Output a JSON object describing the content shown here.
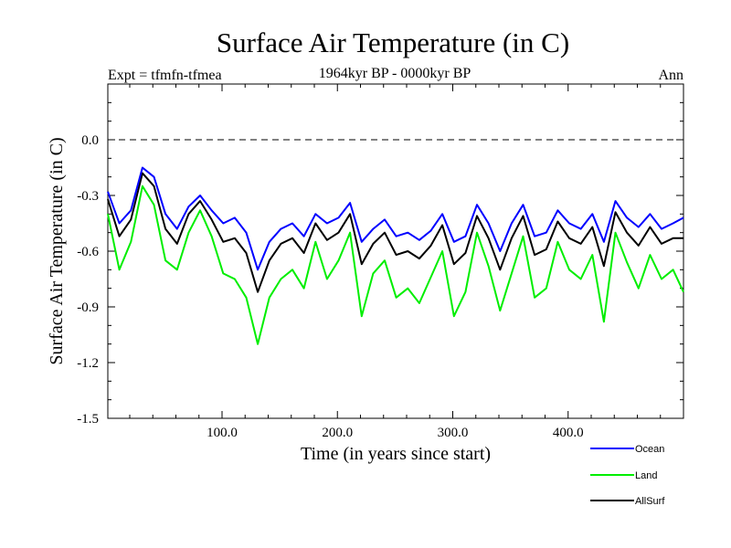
{
  "chart_data": {
    "type": "line",
    "title": "Surface Air Temperature (in C)",
    "subtitle": "1964kyr BP - 0000kyr BP",
    "left_label": "Expt = tfmfn-tfmea",
    "right_label": "Ann",
    "xlabel": "Time (in years since start)",
    "ylabel": "Surface Air Temperature (in C)",
    "xlim": [
      1,
      500
    ],
    "ylim": [
      -1.5,
      0.3
    ],
    "x_ticks": [
      100,
      200,
      300,
      400
    ],
    "x_tick_labels": [
      "100.0",
      "200.0",
      "300.0",
      "400.0"
    ],
    "y_ticks": [
      -1.5,
      -1.2,
      -0.9,
      -0.6,
      -0.3,
      0.0
    ],
    "y_tick_labels": [
      "-1.5",
      "-1.2",
      "-0.9",
      "-0.6",
      "-0.3",
      "0.0"
    ],
    "reference_line": {
      "y": 0.0,
      "style": "dashed"
    },
    "x_sample_step": 10,
    "series": [
      {
        "name": "Ocean",
        "color": "#0000ff",
        "values": [
          -0.28,
          -0.45,
          -0.38,
          -0.15,
          -0.2,
          -0.4,
          -0.48,
          -0.36,
          -0.3,
          -0.38,
          -0.45,
          -0.42,
          -0.5,
          -0.7,
          -0.55,
          -0.48,
          -0.45,
          -0.52,
          -0.4,
          -0.45,
          -0.42,
          -0.34,
          -0.55,
          -0.48,
          -0.43,
          -0.52,
          -0.5,
          -0.54,
          -0.49,
          -0.4,
          -0.55,
          -0.52,
          -0.35,
          -0.45,
          -0.6,
          -0.45,
          -0.35,
          -0.52,
          -0.5,
          -0.38,
          -0.45,
          -0.48,
          -0.4,
          -0.55,
          -0.33,
          -0.42,
          -0.47,
          -0.4,
          -0.48,
          -0.45,
          -0.42
        ]
      },
      {
        "name": "Land",
        "color": "#00ee00",
        "values": [
          -0.4,
          -0.7,
          -0.55,
          -0.25,
          -0.35,
          -0.65,
          -0.7,
          -0.5,
          -0.38,
          -0.52,
          -0.72,
          -0.75,
          -0.85,
          -1.1,
          -0.85,
          -0.75,
          -0.7,
          -0.8,
          -0.55,
          -0.75,
          -0.65,
          -0.5,
          -0.95,
          -0.72,
          -0.65,
          -0.85,
          -0.8,
          -0.88,
          -0.74,
          -0.6,
          -0.95,
          -0.82,
          -0.5,
          -0.68,
          -0.92,
          -0.72,
          -0.52,
          -0.85,
          -0.8,
          -0.55,
          -0.7,
          -0.75,
          -0.62,
          -0.98,
          -0.5,
          -0.66,
          -0.8,
          -0.62,
          -0.75,
          -0.7,
          -0.82
        ]
      },
      {
        "name": "AllSurf",
        "color": "#000000",
        "values": [
          -0.32,
          -0.52,
          -0.43,
          -0.18,
          -0.25,
          -0.48,
          -0.56,
          -0.4,
          -0.33,
          -0.43,
          -0.55,
          -0.53,
          -0.61,
          -0.82,
          -0.65,
          -0.56,
          -0.53,
          -0.61,
          -0.45,
          -0.54,
          -0.5,
          -0.4,
          -0.67,
          -0.56,
          -0.5,
          -0.62,
          -0.6,
          -0.64,
          -0.57,
          -0.46,
          -0.67,
          -0.61,
          -0.41,
          -0.53,
          -0.7,
          -0.53,
          -0.41,
          -0.62,
          -0.59,
          -0.44,
          -0.53,
          -0.56,
          -0.47,
          -0.68,
          -0.39,
          -0.5,
          -0.57,
          -0.47,
          -0.56,
          -0.53,
          -0.53
        ]
      }
    ],
    "legend_position": "bottom-right"
  }
}
